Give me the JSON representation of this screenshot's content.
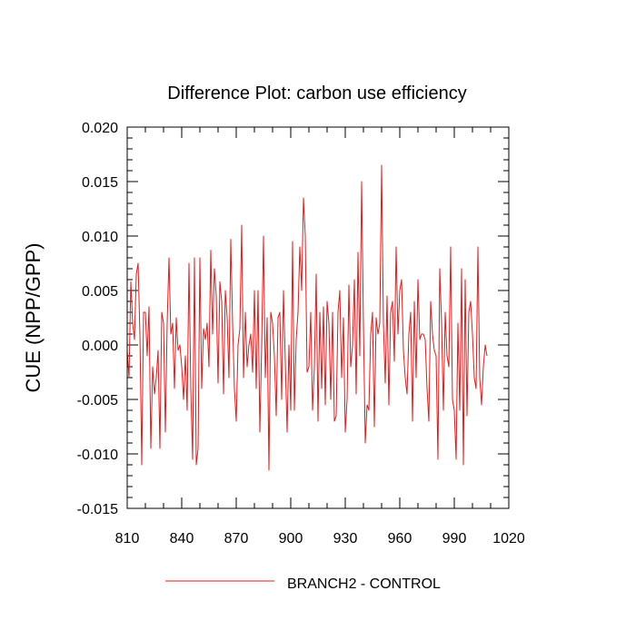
{
  "chart_data": {
    "type": "line",
    "title": "Difference Plot: carbon use efficiency",
    "xlabel": "",
    "ylabel": "CUE  (NPP/GPP)",
    "xlim": [
      810,
      1020
    ],
    "ylim": [
      -0.015,
      0.02
    ],
    "x_ticks": [
      810,
      840,
      870,
      900,
      930,
      960,
      990,
      1020
    ],
    "x_tick_labels": [
      "810",
      "840",
      "870",
      "900",
      "930",
      "960",
      "990",
      "1020"
    ],
    "y_ticks": [
      -0.015,
      -0.01,
      -0.005,
      0.0,
      0.005,
      0.01,
      0.015,
      0.02
    ],
    "y_tick_labels": [
      "-0.015",
      "-0.010",
      "-0.005",
      "0.000",
      "0.005",
      "0.010",
      "0.015",
      "0.020"
    ],
    "grid": false,
    "legend_position": "bottom-center",
    "series": [
      {
        "name": "BRANCH2 - CONTROL",
        "color": "#e31a1c",
        "x_start": 810,
        "x_step": 1,
        "values": [
          -0.0005,
          -0.003,
          0.0058,
          0.002,
          0.0005,
          0.0065,
          0.0075,
          0.001,
          -0.011,
          0.003,
          0.003,
          -0.001,
          0.0035,
          -0.0095,
          -0.002,
          -0.0045,
          -0.003,
          -0.0005,
          -0.0095,
          0.003,
          0.002,
          -0.008,
          0.002,
          0.008,
          0.001,
          0.002,
          -0.004,
          0.0025,
          -0.0005,
          0.0,
          -0.002,
          -0.005,
          -0.001,
          -0.006,
          0.0075,
          -0.004,
          -0.0105,
          0.008,
          -0.011,
          -0.0095,
          0.008,
          -0.004,
          0.0015,
          0.0005,
          0.002,
          -0.002,
          0.0087,
          0.001,
          0.007,
          0.0045,
          -0.0035,
          0.0058,
          0.004,
          -0.0045,
          0.005,
          0.0025,
          -0.003,
          0.0097,
          0.002,
          -0.004,
          -0.007,
          0.0,
          0.0015,
          0.011,
          -0.003,
          0.003,
          -0.002,
          0.0,
          0.001,
          -0.0025,
          0.005,
          -0.004,
          0.005,
          -0.008,
          0.0,
          0.01,
          -0.003,
          0.0025,
          -0.0115,
          0.003,
          0.002,
          -0.001,
          -0.0065,
          0.0025,
          0.003,
          -0.005,
          0.005,
          -0.0015,
          -0.008,
          0.0,
          -0.006,
          0.0095,
          -0.006,
          0.0005,
          0.003,
          0.009,
          0.005,
          0.0135,
          0.01,
          -0.0025,
          -0.002,
          0.003,
          -0.006,
          -0.002,
          0.0065,
          -0.007,
          0.003,
          -0.004,
          0.0035,
          -0.0055,
          0.004,
          0.002,
          -0.005,
          0.003,
          -0.007,
          -0.0065,
          0.003,
          0.005,
          -0.003,
          0.0025,
          -0.008,
          -0.005,
          0.0055,
          -0.002,
          0.0,
          0.006,
          -0.0045,
          0.0085,
          -0.001,
          0.015,
          0.002,
          -0.009,
          -0.0055,
          -0.006,
          0.001,
          0.003,
          -0.0075,
          0.0025,
          0.001,
          0.002,
          0.0165,
          0.002,
          -0.0035,
          0.0045,
          -0.0055,
          0.003,
          0.004,
          -0.0015,
          0.009,
          0.001,
          0.005,
          0.006,
          -0.0005,
          -0.003,
          -0.0045,
          0.001,
          0.003,
          -0.007,
          0.004,
          -0.003,
          0.006,
          0.0005,
          0.001,
          0.001,
          0.0005,
          -0.004,
          -0.007,
          0.004,
          0.001,
          -0.0005,
          -0.001,
          -0.0105,
          0.007,
          0.002,
          -0.006,
          0.003,
          -0.001,
          -0.002,
          0.009,
          -0.005,
          -0.006,
          -0.0105,
          0.002,
          -0.006,
          0.007,
          -0.011,
          0.006,
          -0.0065,
          0.003,
          0.004,
          0.001,
          -0.003,
          -0.004,
          0.009,
          -0.003,
          -0.0055,
          -0.002,
          0.0,
          -0.001
        ]
      }
    ]
  }
}
